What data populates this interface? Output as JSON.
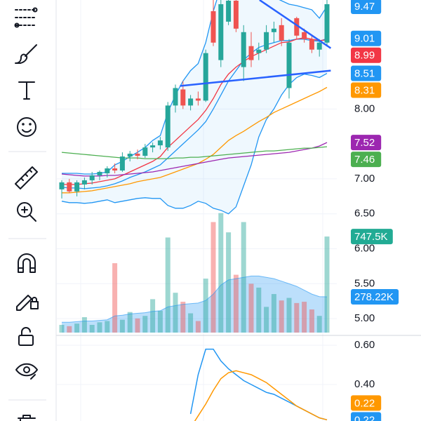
{
  "chart_data": [
    {
      "type": "candlestick",
      "x": [
        0,
        1,
        2,
        3,
        4,
        5,
        6,
        7,
        8,
        9,
        10,
        11,
        12,
        13,
        14,
        15,
        16,
        17,
        18,
        19,
        20,
        21,
        22,
        23,
        24,
        25,
        26,
        27,
        28,
        29,
        30,
        31,
        32,
        33,
        34,
        35
      ],
      "candles": {
        "open": [
          6.85,
          6.95,
          6.82,
          6.92,
          6.98,
          7.05,
          7.08,
          7.15,
          7.12,
          7.32,
          7.36,
          7.33,
          7.45,
          7.48,
          7.45,
          8.05,
          8.28,
          8.05,
          8.15,
          8.12,
          9.4,
          8.7,
          9.25,
          9.55,
          8.6,
          8.9,
          8.8,
          8.85,
          9.1,
          9.2,
          8.3,
          9.3,
          9.1,
          9.0,
          8.85,
          8.95
        ],
        "high": [
          6.98,
          7.0,
          6.98,
          7.02,
          7.1,
          7.12,
          7.18,
          7.22,
          7.38,
          7.4,
          7.42,
          7.5,
          7.52,
          7.6,
          8.1,
          8.35,
          8.4,
          8.2,
          8.25,
          8.85,
          9.6,
          9.6,
          9.6,
          9.6,
          9.2,
          9.1,
          8.95,
          9.2,
          9.25,
          9.3,
          9.0,
          9.32,
          9.15,
          9.05,
          9.0,
          9.6
        ],
        "low": [
          6.72,
          6.8,
          6.75,
          6.85,
          6.92,
          6.98,
          7.02,
          7.08,
          7.1,
          7.25,
          7.28,
          7.3,
          7.38,
          7.42,
          7.4,
          7.95,
          8.0,
          7.98,
          8.05,
          8.1,
          8.9,
          8.6,
          9.2,
          9.1,
          8.4,
          8.6,
          8.7,
          8.8,
          8.95,
          8.9,
          8.15,
          9.0,
          8.95,
          8.8,
          8.75,
          8.9
        ],
        "close": [
          6.95,
          6.82,
          6.95,
          6.98,
          7.05,
          7.1,
          7.15,
          7.12,
          7.32,
          7.36,
          7.33,
          7.45,
          7.48,
          7.55,
          8.05,
          8.3,
          8.05,
          8.15,
          8.12,
          8.8,
          8.95,
          9.5,
          9.55,
          9.15,
          9.1,
          8.7,
          8.85,
          9.1,
          9.15,
          8.98,
          8.95,
          9.05,
          9.0,
          8.85,
          8.95,
          9.5
        ],
        "up_color": "#26a69a",
        "down_color": "#ef5350"
      },
      "ylim": [
        4.77,
        9.56
      ],
      "yticks": [
        {
          "value": 8,
          "label": "8.00"
        },
        {
          "value": 7,
          "label": "7.00"
        },
        {
          "value": 6.5,
          "label": "6.50"
        },
        {
          "value": 6,
          "label": "6.00"
        },
        {
          "value": 5.5,
          "label": "5.50"
        },
        {
          "value": 5,
          "label": "5.00"
        }
      ],
      "grid": true,
      "band": {
        "fill": "#2196f3",
        "upper": {
          "color": "#2196f3",
          "value_label": "9.47",
          "values": [
            7.08,
            7.08,
            7.08,
            7.07,
            7.07,
            7.08,
            7.1,
            7.2,
            7.25,
            7.32,
            7.38,
            7.45,
            7.55,
            7.62,
            7.95,
            8.2,
            8.4,
            8.55,
            8.65,
            8.95,
            9.4,
            9.75,
            9.9,
            9.95,
            9.9,
            9.85,
            9.75,
            9.65,
            9.6,
            9.55,
            9.5,
            9.48,
            9.45,
            9.42,
            9.3,
            9.47
          ]
        },
        "basis": {
          "color": "#2196f3",
          "value_label": "9.01",
          "values": [
            6.88,
            6.87,
            6.87,
            6.86,
            6.87,
            6.88,
            6.9,
            6.93,
            6.97,
            7.02,
            7.06,
            7.1,
            7.15,
            7.2,
            7.3,
            7.4,
            7.5,
            7.6,
            7.7,
            7.82,
            8.0,
            8.2,
            8.4,
            8.55,
            8.7,
            8.8,
            8.88,
            8.92,
            8.95,
            8.98,
            8.98,
            9.0,
            9.0,
            8.98,
            8.97,
            9.01
          ]
        },
        "lower": {
          "color": "#2196f3",
          "value_label": "8.51",
          "values": [
            6.68,
            6.66,
            6.66,
            6.65,
            6.66,
            6.68,
            6.7,
            6.66,
            6.68,
            6.7,
            6.72,
            6.73,
            6.72,
            6.72,
            6.62,
            6.58,
            6.58,
            6.62,
            6.68,
            6.65,
            6.58,
            6.55,
            6.5,
            6.6,
            6.9,
            7.2,
            7.6,
            7.85,
            8.0,
            8.2,
            8.35,
            8.45,
            8.5,
            8.48,
            8.45,
            8.51
          ]
        }
      },
      "lines": [
        {
          "color": "#f23645",
          "value_label": "8.99",
          "values": [
            6.92,
            6.92,
            6.92,
            6.93,
            6.94,
            6.96,
            6.98,
            7.0,
            7.05,
            7.1,
            7.15,
            7.2,
            7.25,
            7.32,
            7.45,
            7.55,
            7.65,
            7.75,
            7.85,
            7.98,
            8.15,
            8.35,
            8.5,
            8.6,
            8.68,
            8.75,
            8.8,
            8.85,
            8.9,
            8.95,
            8.96,
            9.0,
            9.02,
            9.0,
            8.98,
            8.99
          ]
        },
        {
          "color": "#ff9800",
          "value_label": "8.31",
          "values": [
            6.8,
            6.8,
            6.81,
            6.82,
            6.83,
            6.85,
            6.87,
            6.89,
            6.91,
            6.93,
            6.96,
            6.98,
            7.0,
            7.02,
            7.06,
            7.1,
            7.14,
            7.18,
            7.22,
            7.28,
            7.35,
            7.45,
            7.55,
            7.62,
            7.68,
            7.75,
            7.82,
            7.88,
            7.95,
            8.0,
            8.05,
            8.1,
            8.15,
            8.2,
            8.25,
            8.31
          ]
        },
        {
          "color": "#9c27b0",
          "value_label": "7.52",
          "values": [
            7.07,
            7.06,
            7.05,
            7.04,
            7.04,
            7.04,
            7.05,
            7.05,
            7.06,
            7.07,
            7.08,
            7.09,
            7.1,
            7.12,
            7.14,
            7.16,
            7.18,
            7.2,
            7.22,
            7.24,
            7.26,
            7.28,
            7.3,
            7.31,
            7.32,
            7.33,
            7.34,
            7.35,
            7.36,
            7.37,
            7.38,
            7.4,
            7.42,
            7.44,
            7.47,
            7.52
          ]
        },
        {
          "color": "#4caf50",
          "value_label": "7.46",
          "values": [
            7.38,
            7.37,
            7.36,
            7.35,
            7.34,
            7.33,
            7.32,
            7.31,
            7.3,
            7.3,
            7.3,
            7.29,
            7.29,
            7.29,
            7.29,
            7.3,
            7.3,
            7.31,
            7.31,
            7.32,
            7.33,
            7.34,
            7.35,
            7.36,
            7.37,
            7.38,
            7.39,
            7.4,
            7.4,
            7.41,
            7.42,
            7.43,
            7.44,
            7.44,
            7.45,
            7.46
          ]
        }
      ],
      "trendlines": [
        {
          "color": "#2962ff",
          "x": [
            15.6,
            35.5
          ],
          "values": [
            8.33,
            8.55
          ]
        },
        {
          "color": "#2962ff",
          "x": [
            26.1,
            35.5
          ],
          "values": [
            9.56,
            8.87
          ]
        }
      ],
      "volume": {
        "ylim": [
          0,
          950
        ],
        "value_label": "747.5K",
        "color": "#22ab94",
        "values": [
          60,
          50,
          70,
          120,
          60,
          80,
          90,
          540,
          100,
          160,
          110,
          130,
          260,
          170,
          740,
          310,
          240,
          150,
          90,
          420,
          860,
          930,
          780,
          450,
          860,
          380,
          350,
          200,
          300,
          250,
          270,
          230,
          240,
          180,
          130,
          747.5
        ]
      },
      "volume_ma": {
        "color": "#2196f3",
        "value_label": "278.22K",
        "values": [
          80,
          80,
          85,
          90,
          90,
          95,
          100,
          130,
          135,
          145,
          150,
          155,
          165,
          170,
          200,
          210,
          220,
          225,
          230,
          250,
          300,
          370,
          410,
          420,
          430,
          440,
          440,
          430,
          420,
          400,
          380,
          360,
          330,
          300,
          280,
          278.22
        ]
      }
    },
    {
      "type": "line",
      "ylim": [
        0.214,
        0.643
      ],
      "yticks": [
        {
          "value": 0.6,
          "label": "0.60"
        },
        {
          "value": 0.4,
          "label": "0.40"
        }
      ],
      "series": [
        {
          "color": "#2196f3",
          "value_label": "0.22",
          "x": [
            17,
            18,
            19,
            20,
            21,
            22,
            23,
            24,
            25,
            26,
            27,
            28,
            29,
            30,
            31,
            32,
            33,
            34,
            35
          ],
          "values": [
            0.25,
            0.45,
            0.58,
            0.58,
            0.52,
            0.48,
            0.45,
            0.42,
            0.4,
            0.38,
            0.36,
            0.35,
            0.33,
            0.31,
            0.29,
            0.27,
            0.25,
            0.23,
            0.22
          ]
        },
        {
          "color": "#ff9800",
          "value_label": "0.22",
          "x": [
            17,
            18,
            19,
            20,
            21,
            22,
            23,
            24,
            25,
            26,
            27,
            28,
            29,
            30,
            31,
            32,
            33,
            34,
            35
          ],
          "values": [
            0.18,
            0.24,
            0.3,
            0.37,
            0.43,
            0.46,
            0.47,
            0.46,
            0.45,
            0.43,
            0.41,
            0.38,
            0.35,
            0.32,
            0.29,
            0.27,
            0.25,
            0.23,
            0.22
          ]
        }
      ]
    }
  ]
}
